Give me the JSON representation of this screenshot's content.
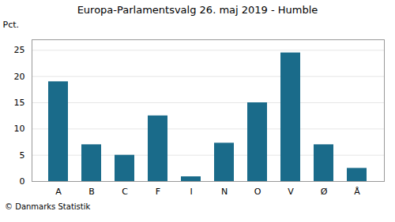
{
  "chart_data": {
    "type": "bar",
    "title": "Europa-Parlamentsvalg 26. maj 2019 - Humble",
    "categories": [
      "A",
      "B",
      "C",
      "F",
      "I",
      "N",
      "O",
      "V",
      "Ø",
      "Å"
    ],
    "values": [
      19.0,
      7.0,
      5.0,
      12.5,
      0.9,
      7.3,
      15.0,
      24.5,
      7.0,
      2.5
    ],
    "color": "#1a6b8a",
    "ylabel": "Pct.",
    "ylim": [
      0,
      27
    ],
    "yticks": [
      0,
      5,
      10,
      15,
      20,
      25
    ],
    "grid": true,
    "caption": "© Danmarks Statistik"
  }
}
